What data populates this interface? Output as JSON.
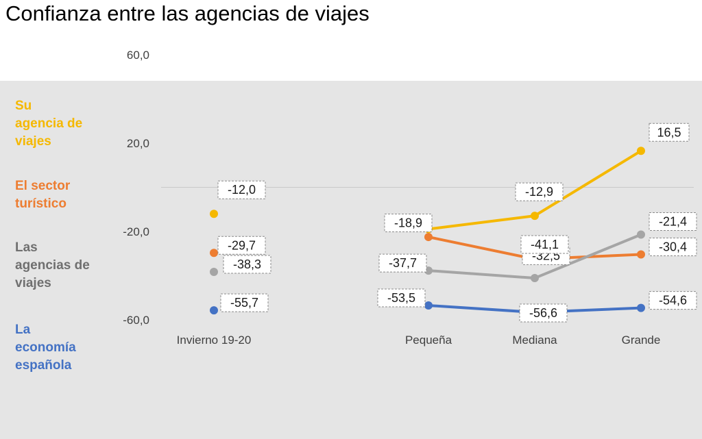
{
  "chart_data": {
    "type": "line",
    "title": "Confianza entre las agencias de viajes",
    "xlabel": "",
    "ylabel": "",
    "ylim": [
      -60,
      60
    ],
    "yticks": [
      "60,0",
      "20,0",
      "-20,0",
      "-60,0"
    ],
    "ytick_values": [
      60,
      20,
      -20,
      -60
    ],
    "categories": [
      "Invierno 19-20",
      "Pequeña",
      "Mediana",
      "Grande"
    ],
    "grid": false,
    "legend_position": "left",
    "series": [
      {
        "name": "Su agencia de viajes",
        "color": "#f5b800",
        "values": [
          -12.0,
          -18.9,
          -12.9,
          16.5
        ],
        "labels": [
          "-12,0",
          "-18,9",
          "-12,9",
          "16,5"
        ]
      },
      {
        "name": "El sector turístico",
        "color": "#ed7d31",
        "values": [
          -29.7,
          -22.5,
          -32.5,
          -30.4
        ],
        "labels": [
          "-29,7",
          "",
          "-32,5",
          "-30,4"
        ]
      },
      {
        "name": "Las agencias de viajes",
        "color": "#a5a5a5",
        "values": [
          -38.3,
          -37.7,
          -41.1,
          -21.4
        ],
        "labels": [
          "-38,3",
          "-37,7",
          "-41,1",
          "-21,4"
        ]
      },
      {
        "name": "La economía española",
        "color": "#4472c4",
        "values": [
          -55.7,
          -53.5,
          -56.6,
          -54.6
        ],
        "labels": [
          "-55,7",
          "-53,5",
          "-56,6",
          "-54,6"
        ]
      }
    ]
  },
  "legend_lines": [
    [
      "Su",
      "agencia de",
      "viajes"
    ],
    [
      "El sector",
      "turístico"
    ],
    [
      "Las",
      "agencias de",
      "viajes"
    ],
    [
      "La",
      "economía",
      "española"
    ]
  ],
  "legend_colors": [
    "#f5b800",
    "#ed7d31",
    "#6f6f6f",
    "#4472c4"
  ]
}
